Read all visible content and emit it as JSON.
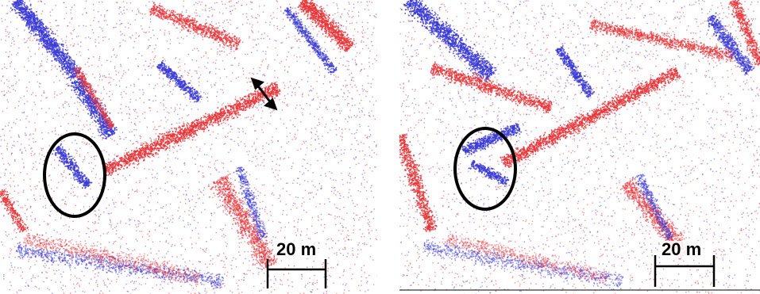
{
  "panels": [
    {
      "id": "left",
      "scale_bar_label": "20 m"
    },
    {
      "id": "right",
      "scale_bar_label": "20 m"
    }
  ],
  "colors": {
    "series_a": "#e8363a",
    "series_b": "#3b3bd6",
    "annotation": "#000000",
    "background": "#ffffff"
  },
  "annotations": {
    "left": [
      "ellipse-marker",
      "double-arrow-marker",
      "scale-bar"
    ],
    "right": [
      "ellipse-marker",
      "scale-bar"
    ]
  }
}
